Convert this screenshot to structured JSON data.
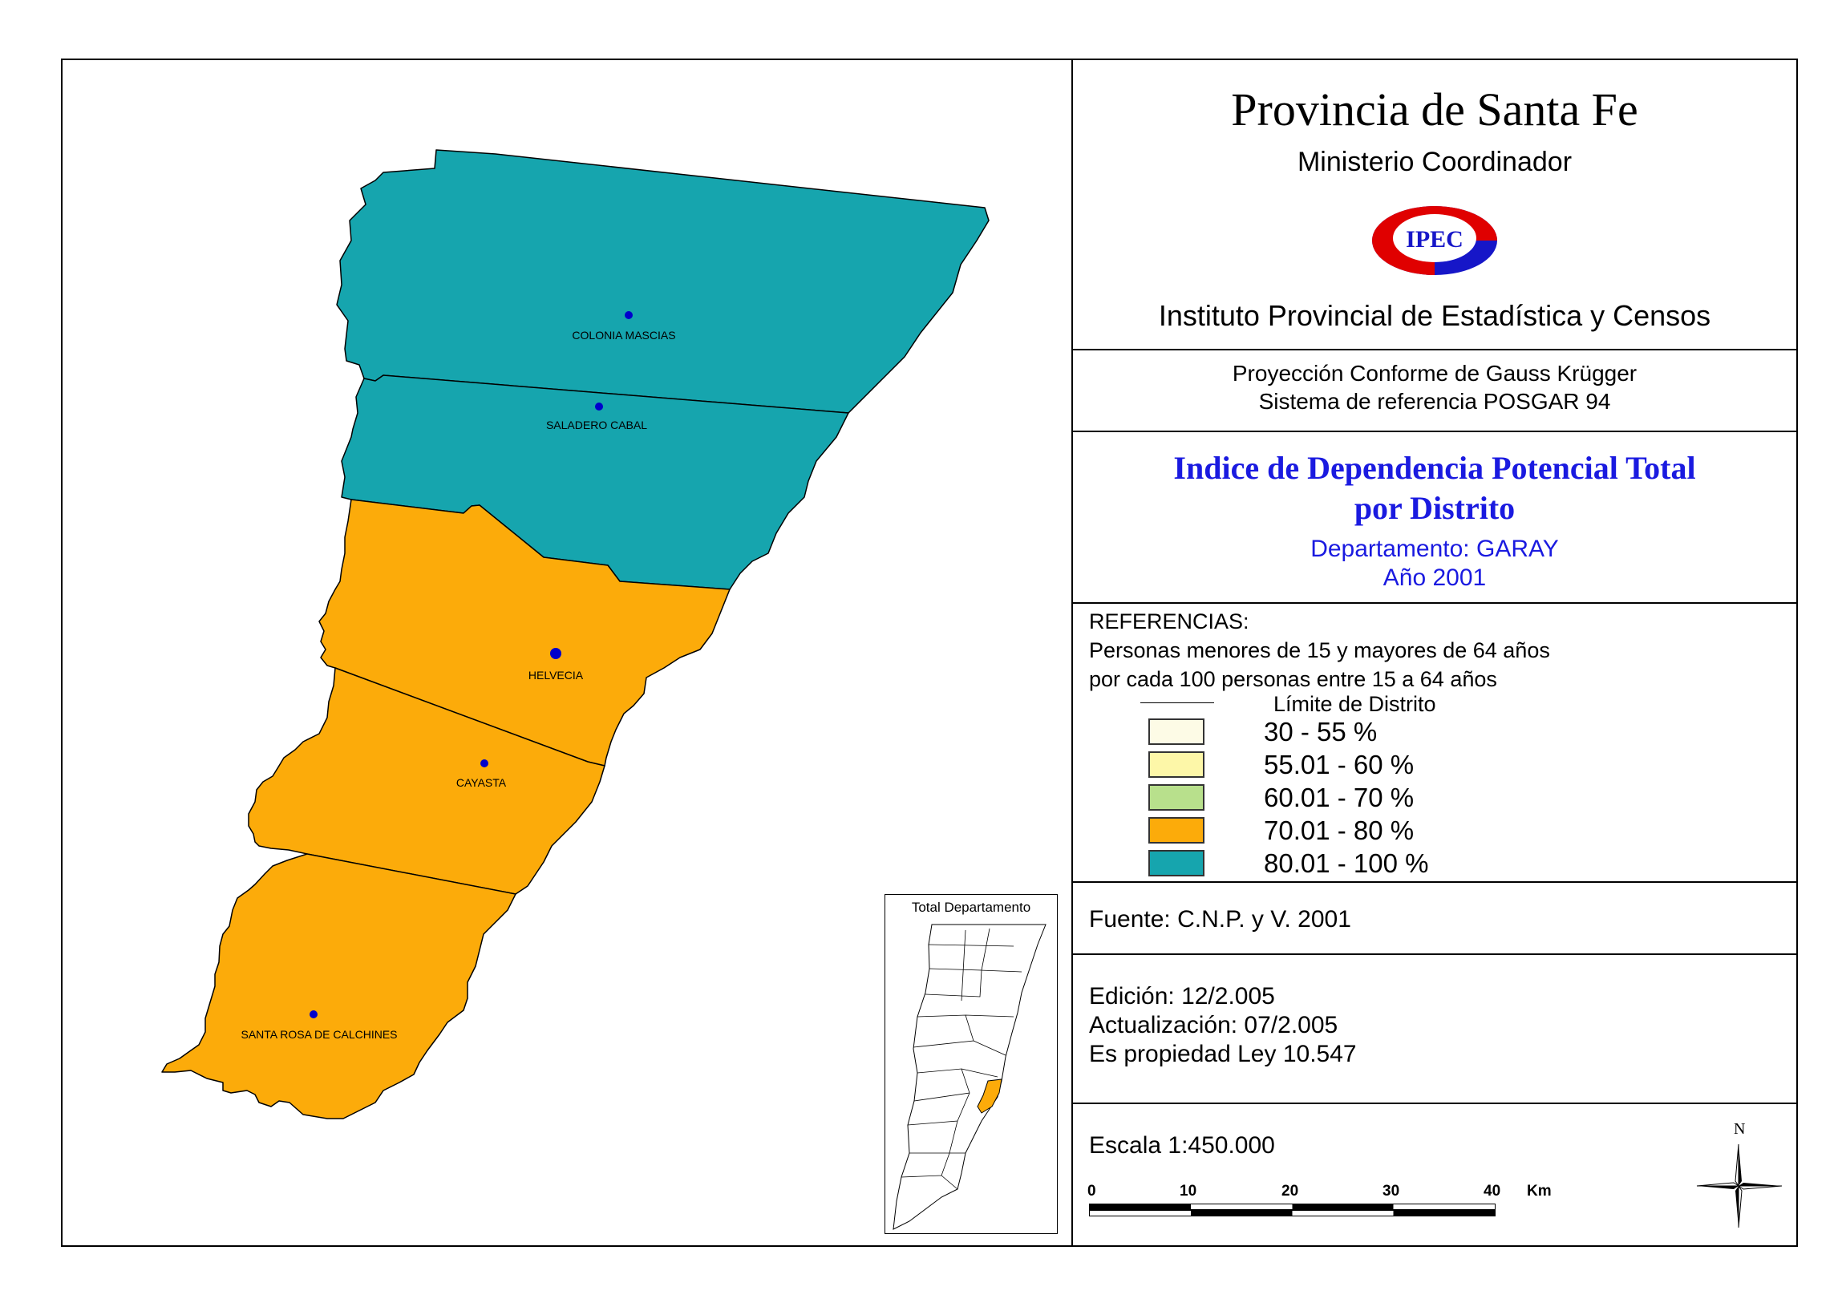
{
  "header": {
    "title": "Provincia de Santa Fe",
    "ministry": "Ministerio Coordinador",
    "logo_text": "IPEC",
    "institute": "Instituto Provincial de Estadística y Censos"
  },
  "projection": {
    "line1": "Proyección Conforme de Gauss Krügger",
    "line2": "Sistema de referencia POSGAR 94"
  },
  "map_title": {
    "line1": "Indice de Dependencia Potencial Total",
    "line2": "por Distrito",
    "department": "Departamento:  GARAY",
    "year": "Año 2001"
  },
  "legend": {
    "heading": "REFERENCIAS:",
    "desc1": "Personas menores de 15 y mayores de 64 años",
    "desc2": "por cada 100 personas entre 15 a 64 años",
    "boundary_label": "Límite de Distrito",
    "classes": [
      {
        "label": "30 - 55 %",
        "color": "#fdfbe6"
      },
      {
        "label": "55.01 - 60 %",
        "color": "#fdf7a8"
      },
      {
        "label": "60.01 - 70 %",
        "color": "#b8e08c"
      },
      {
        "label": "70.01 - 80 %",
        "color": "#fcab0a"
      },
      {
        "label": "80.01 - 100 %",
        "color": "#16a5ae"
      }
    ]
  },
  "source": "Fuente:  C.N.P. y V. 2001",
  "edition": {
    "edicion": "Edición:  12/2.005",
    "actualizacion": "Actualización:  07/2.005",
    "propiedad": "Es propiedad Ley 10.547"
  },
  "scale": {
    "label": "Escala 1:450.000",
    "ticks": [
      "0",
      "10",
      "20",
      "30",
      "40"
    ],
    "unit": "Km"
  },
  "north_label": "N",
  "inset_title": "Total Departamento",
  "districts": [
    {
      "name": "COLONIA MASCIAS",
      "class": "80.01 - 100 %",
      "color": "#16a5ae"
    },
    {
      "name": "SALADERO CABAL",
      "class": "80.01 - 100 %",
      "color": "#16a5ae"
    },
    {
      "name": "HELVECIA",
      "class": "70.01 - 80 %",
      "color": "#fcab0a"
    },
    {
      "name": "CAYASTA",
      "class": "70.01 - 80 %",
      "color": "#fcab0a"
    },
    {
      "name": "SANTA ROSA DE CALCHINES",
      "class": "70.01 - 80 %",
      "color": "#fcab0a"
    }
  ]
}
